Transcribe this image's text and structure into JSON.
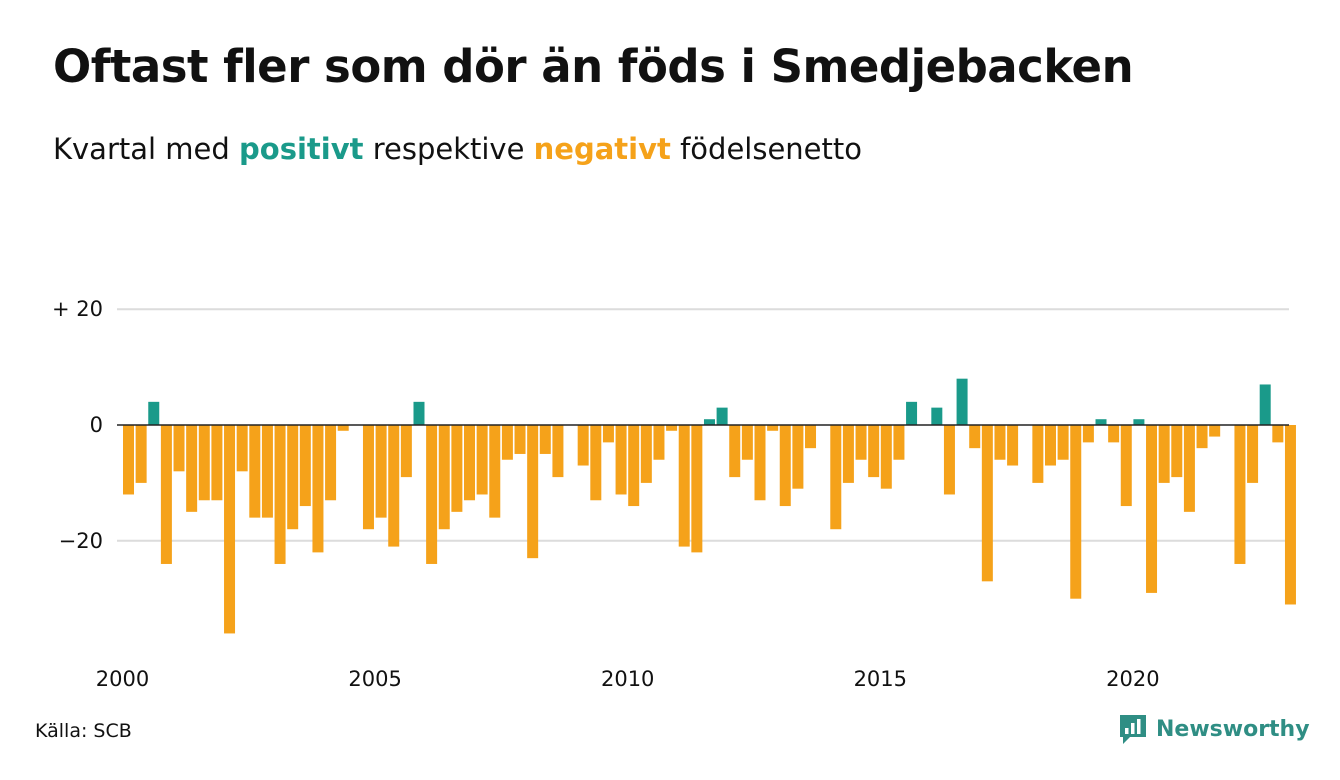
{
  "title": "Oftast fler som dör än föds i Smedjebacken",
  "subtitle": {
    "prefix": "Kvartal med ",
    "positive_word": "positivt",
    "middle": " respektive ",
    "negative_word": "negativt",
    "suffix": " födelsenetto"
  },
  "colors": {
    "positive": "#1a9a8a",
    "negative": "#f5a21a",
    "grid": "#dcdcdc",
    "zero_line": "#222222",
    "brand": "#2f8e84"
  },
  "source": "Källa: SCB",
  "brand": {
    "name": "Newsworthy",
    "icon": "newsworthy-logo-icon"
  },
  "chart_data": {
    "type": "bar",
    "x_unit": "quarter",
    "x_start": "2000 Q1",
    "x_end": "2023 Q1",
    "xticks": [
      "2000",
      "2005",
      "2010",
      "2015",
      "2020"
    ],
    "yticks": [
      {
        "value": 20,
        "label": "+ 20"
      },
      {
        "value": 0,
        "label": "0"
      },
      {
        "value": -20,
        "label": "−20"
      }
    ],
    "ylim": [
      -36,
      20
    ],
    "grid": true,
    "legend": "none",
    "categories": [
      "2000 Q1",
      "2000 Q2",
      "2000 Q3",
      "2000 Q4",
      "2001 Q1",
      "2001 Q2",
      "2001 Q3",
      "2001 Q4",
      "2002 Q1",
      "2002 Q2",
      "2002 Q3",
      "2002 Q4",
      "2003 Q1",
      "2003 Q2",
      "2003 Q3",
      "2003 Q4",
      "2004 Q1",
      "2004 Q2",
      "2004 Q3",
      "2004 Q4",
      "2005 Q1",
      "2005 Q2",
      "2005 Q3",
      "2005 Q4",
      "2006 Q1",
      "2006 Q2",
      "2006 Q3",
      "2006 Q4",
      "2007 Q1",
      "2007 Q2",
      "2007 Q3",
      "2007 Q4",
      "2008 Q1",
      "2008 Q2",
      "2008 Q3",
      "2008 Q4",
      "2009 Q1",
      "2009 Q2",
      "2009 Q3",
      "2009 Q4",
      "2010 Q1",
      "2010 Q2",
      "2010 Q3",
      "2010 Q4",
      "2011 Q1",
      "2011 Q2",
      "2011 Q3",
      "2011 Q4",
      "2012 Q1",
      "2012 Q2",
      "2012 Q3",
      "2012 Q4",
      "2013 Q1",
      "2013 Q2",
      "2013 Q3",
      "2013 Q4",
      "2014 Q1",
      "2014 Q2",
      "2014 Q3",
      "2014 Q4",
      "2015 Q1",
      "2015 Q2",
      "2015 Q3",
      "2015 Q4",
      "2016 Q1",
      "2016 Q2",
      "2016 Q3",
      "2016 Q4",
      "2017 Q1",
      "2017 Q2",
      "2017 Q3",
      "2017 Q4",
      "2018 Q1",
      "2018 Q2",
      "2018 Q3",
      "2018 Q4",
      "2019 Q1",
      "2019 Q2",
      "2019 Q3",
      "2019 Q4",
      "2020 Q1",
      "2020 Q2",
      "2020 Q3",
      "2020 Q4",
      "2021 Q1",
      "2021 Q2",
      "2021 Q3",
      "2021 Q4",
      "2022 Q1",
      "2022 Q2",
      "2022 Q3",
      "2022 Q4",
      "2023 Q1"
    ],
    "values": [
      -12,
      -10,
      4,
      -24,
      -8,
      -15,
      -13,
      -13,
      -36,
      -8,
      -16,
      -16,
      -24,
      -18,
      -14,
      -22,
      -13,
      -1,
      0,
      -18,
      -16,
      -21,
      -9,
      4,
      -24,
      -18,
      -15,
      -13,
      -12,
      -16,
      -6,
      -5,
      -23,
      -5,
      -9,
      0,
      -7,
      -13,
      -3,
      -12,
      -14,
      -10,
      -6,
      -1,
      -21,
      -22,
      1,
      3,
      -9,
      -6,
      -13,
      -1,
      -14,
      -11,
      -4,
      0,
      -18,
      -10,
      -6,
      -9,
      -11,
      -6,
      4,
      0,
      3,
      -12,
      8,
      -4,
      -27,
      -6,
      -7,
      0,
      -10,
      -7,
      -6,
      -30,
      -3,
      1,
      -3,
      -14,
      1,
      -29,
      -10,
      -9,
      -15,
      -4,
      -2,
      0,
      -24,
      -10,
      7,
      -3,
      -31
    ]
  }
}
